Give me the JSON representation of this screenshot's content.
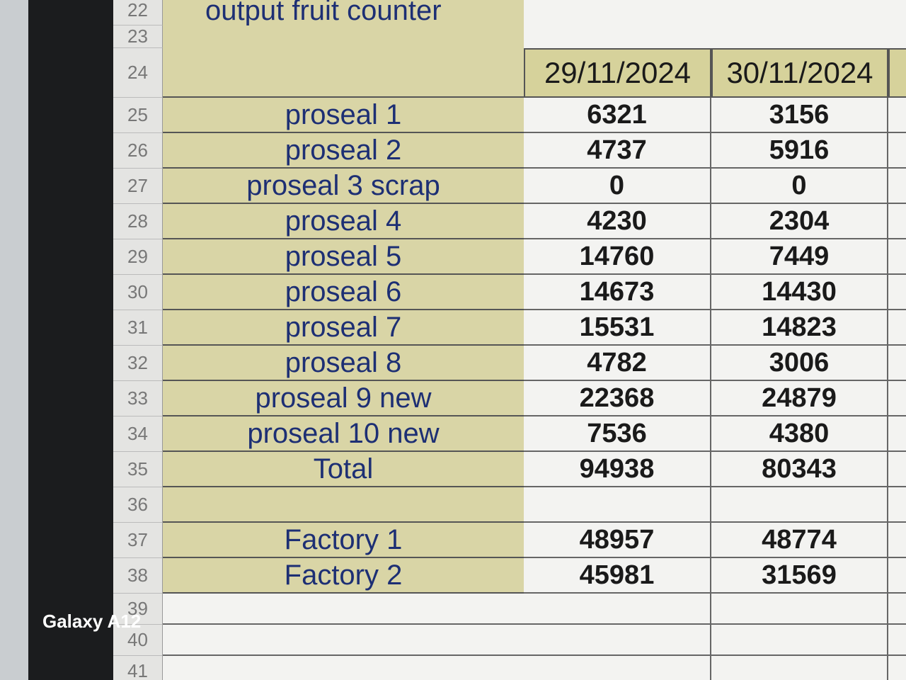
{
  "screen_label": "Galaxy A12",
  "sheet": {
    "title": "output fruit counter",
    "row_numbers": [
      22,
      23,
      24,
      25,
      26,
      27,
      28,
      29,
      30,
      31,
      32,
      33,
      34,
      35,
      36,
      37,
      38,
      39,
      40,
      41
    ],
    "columns": [
      "29/11/2024",
      "30/11/2024"
    ],
    "rows": [
      {
        "label": "proseal 1",
        "values": [
          6321,
          3156
        ]
      },
      {
        "label": "proseal 2",
        "values": [
          4737,
          5916
        ]
      },
      {
        "label": "proseal 3 scrap",
        "values": [
          0,
          0
        ]
      },
      {
        "label": "proseal 4",
        "values": [
          4230,
          2304
        ]
      },
      {
        "label": "proseal 5",
        "values": [
          14760,
          7449
        ]
      },
      {
        "label": "proseal 6",
        "values": [
          14673,
          14430
        ]
      },
      {
        "label": "proseal 7",
        "values": [
          15531,
          14823
        ]
      },
      {
        "label": "proseal 8",
        "values": [
          4782,
          3006
        ]
      },
      {
        "label": "proseal 9 new",
        "values": [
          22368,
          24879
        ]
      },
      {
        "label": "proseal 10 new",
        "values": [
          7536,
          4380
        ]
      },
      {
        "label": "Total",
        "values": [
          94938,
          80343
        ]
      }
    ],
    "factory_rows": [
      {
        "label": "Factory 1",
        "values": [
          48957,
          48774
        ]
      },
      {
        "label": "Factory 2",
        "values": [
          45981,
          31569
        ]
      }
    ]
  }
}
